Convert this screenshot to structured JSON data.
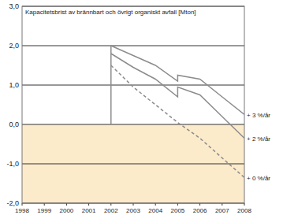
{
  "chart_data": {
    "type": "line",
    "title": "Kapacitetsbrist av brännbart och övrigt organiskt avfall [Mton]",
    "x": [
      2002,
      2003,
      2004,
      2005,
      2005,
      2006,
      2007,
      2008
    ],
    "series": [
      {
        "name": "+ 3 %/år",
        "color": "#8c8c8c",
        "line_style": "solid",
        "values": [
          2.0,
          1.75,
          1.5,
          1.1,
          1.25,
          1.15,
          0.7,
          0.25
        ]
      },
      {
        "name": "+ 2 %/år",
        "color": "#8c8c8c",
        "line_style": "solid",
        "values": [
          1.8,
          1.45,
          1.15,
          0.7,
          0.95,
          0.75,
          0.2,
          -0.35
        ]
      },
      {
        "name": "+ 0 %/år",
        "color": "#8c8c8c",
        "line_style": "dashed",
        "values": [
          1.5,
          0.95,
          0.5,
          0.05,
          0.05,
          -0.35,
          -0.85,
          -1.35
        ]
      }
    ],
    "xlim": [
      1998,
      2008
    ],
    "xticks": [
      1998,
      1999,
      2000,
      2001,
      2002,
      2003,
      2004,
      2005,
      2006,
      2007,
      2008
    ],
    "ylim": [
      -2,
      3
    ],
    "yticks": [
      {
        "value": -2,
        "label": "-2,0"
      },
      {
        "value": -1,
        "label": "-1,0"
      },
      {
        "value": 0,
        "label": "0,0"
      },
      {
        "value": 1,
        "label": "1,0"
      },
      {
        "value": 2,
        "label": "2,0"
      },
      {
        "value": 3,
        "label": "3,0"
      }
    ],
    "grid": true
  }
}
